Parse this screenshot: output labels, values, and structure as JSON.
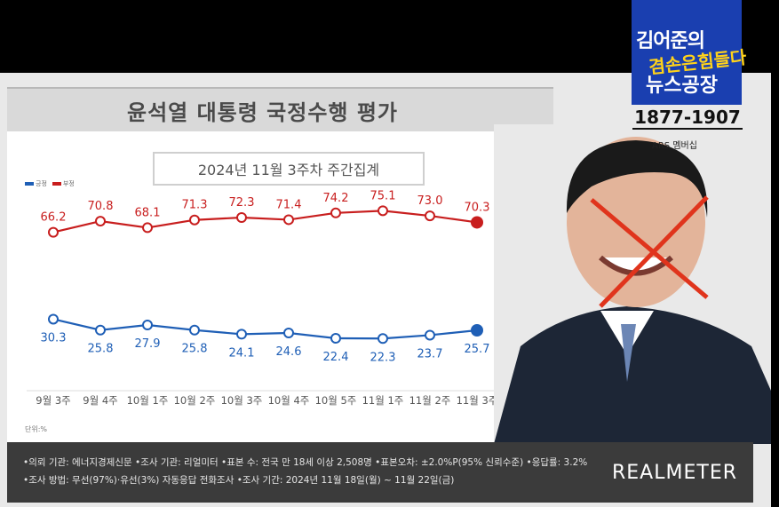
{
  "header": {
    "title": "윤석열 대통령 국정수행 평가"
  },
  "subtitle": "2024년 11월 3주차 주간집계",
  "legend": [
    {
      "label": "긍정",
      "color": "#1f5fb6"
    },
    {
      "label": "부정",
      "color": "#c81e1e"
    }
  ],
  "unit": "단위:%",
  "channel": {
    "name_line1": "김어준의",
    "name_line2": "겸손은힘들다",
    "name_line3": "뉴스공장",
    "phone": "1877-1907",
    "ars": "ARS 멤버십"
  },
  "footer": {
    "line1": "•의뢰 기관: 에너지경제신문 •조사 기관: 리얼미터 •표본 수: 전국 만 18세 이상 2,508명 •표본오차: ±2.0%P(95% 신뢰수준) •응답률: 3.2%",
    "line2": "•조사 방법: 무선(97%)·유선(3%) 자동응답 전화조사 •조사 기간: 2024년 11월 18일(월) ~ 11월 22일(금)",
    "brand": "REALMETER"
  },
  "colors": {
    "positive": "#1f5fb6",
    "negative": "#c81e1e"
  },
  "chart_data": {
    "type": "line",
    "title": "윤석열 대통령 국정수행 평가",
    "categories": [
      "9월 3주",
      "9월 4주",
      "10월 1주",
      "10월 2주",
      "10월 3주",
      "10월 4주",
      "10월 5주",
      "11월 1주",
      "11월 2주",
      "11월 3주"
    ],
    "series": [
      {
        "name": "부정",
        "values": [
          66.2,
          70.8,
          68.1,
          71.3,
          72.3,
          71.4,
          74.2,
          75.1,
          73.0,
          70.3
        ]
      },
      {
        "name": "긍정",
        "values": [
          30.3,
          25.8,
          27.9,
          25.8,
          24.1,
          24.6,
          22.4,
          22.3,
          23.7,
          25.7
        ]
      }
    ],
    "value_labels": {
      "부정": [
        "66.2",
        "70.8",
        "68.1",
        "71.3",
        "72.3",
        "71.4",
        "74.2",
        "75.1",
        "73.0",
        "70.3"
      ],
      "긍정": [
        "30.3",
        "25.8",
        "27.9",
        "25.8",
        "24.1",
        "24.6",
        "22.4",
        "22.3",
        "23.7",
        "25.7"
      ]
    },
    "ylim": [
      18,
      80
    ],
    "grid": false,
    "legend_position": "top-left"
  }
}
